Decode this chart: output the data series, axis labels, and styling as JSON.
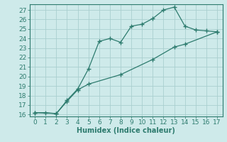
{
  "line1_x": [
    0,
    1,
    2,
    3,
    4,
    5,
    6,
    7,
    8,
    9,
    10,
    11,
    12,
    13,
    14,
    15,
    16,
    17
  ],
  "line1_y": [
    16.2,
    16.2,
    16.1,
    17.5,
    18.7,
    20.8,
    23.7,
    24.0,
    23.6,
    25.3,
    25.5,
    26.1,
    27.0,
    27.3,
    25.3,
    24.9,
    24.8,
    24.7
  ],
  "line2_x": [
    0,
    2,
    3,
    4,
    5,
    8,
    11,
    13,
    14,
    17
  ],
  "line2_y": [
    16.2,
    16.1,
    17.4,
    18.6,
    19.2,
    20.2,
    21.8,
    23.1,
    23.4,
    24.7
  ],
  "line_color": "#2d7b6e",
  "bg_color": "#ceeaea",
  "grid_color": "#aacfcf",
  "xlabel": "Humidex (Indice chaleur)",
  "xlim": [
    -0.5,
    17.5
  ],
  "ylim": [
    15.8,
    27.6
  ],
  "xticks": [
    0,
    1,
    2,
    3,
    4,
    5,
    6,
    7,
    8,
    9,
    10,
    11,
    12,
    13,
    14,
    15,
    16,
    17
  ],
  "yticks": [
    16,
    17,
    18,
    19,
    20,
    21,
    22,
    23,
    24,
    25,
    26,
    27
  ],
  "xlabel_fontsize": 7,
  "tick_fontsize": 6.5,
  "marker": "+",
  "markersize": 4,
  "linewidth": 0.9
}
